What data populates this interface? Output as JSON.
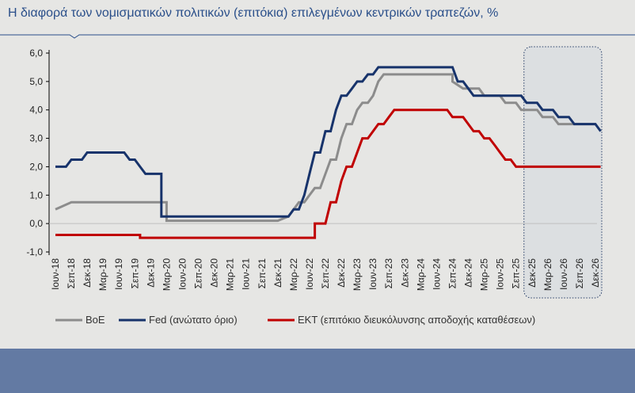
{
  "title": "Η διαφορά των νομισματικών πολιτικών (επιτόκια) επιλεγμένων κεντρικών τραπεζών, %",
  "colors": {
    "title": "#2a4f8a",
    "boe": "#8c8c8c",
    "fed": "#17336b",
    "ecb": "#c00000",
    "footer": "#637aa3"
  },
  "chart_data": {
    "type": "line",
    "ylim": [
      -1.0,
      6.0
    ],
    "yticks": [
      "6,0",
      "5,0",
      "4,0",
      "3,0",
      "2,0",
      "1,0",
      "0,0",
      "-1,0"
    ],
    "ytick_values": [
      6,
      5,
      4,
      3,
      2,
      1,
      0,
      -1
    ],
    "x_tick_labels": [
      "Ιουν-18",
      "Σεπ-18",
      "Δεκ-18",
      "Μαρ-19",
      "Ιουν-19",
      "Σεπ-19",
      "Δεκ-19",
      "Μαρ-20",
      "Ιουν-20",
      "Σεπ-20",
      "Δεκ-20",
      "Μαρ-21",
      "Ιουν-21",
      "Σεπ-21",
      "Δεκ-21",
      "Μαρ-22",
      "Ιουν-22",
      "Σεπ-22",
      "Δεκ-22",
      "Μαρ-23",
      "Ιουν-23",
      "Σεπ-23",
      "Δεκ-23",
      "Μαρ-24",
      "Ιουν-24",
      "Σεπ-24",
      "Δεκ-24",
      "Μαρ-25",
      "Ιουν-25",
      "Σεπ-25",
      "Δεκ-25",
      "Μαρ-26",
      "Ιουν-26",
      "Σεπ-26",
      "Δεκ-26"
    ],
    "forecast_from": "Δεκ-25",
    "grid": false,
    "legend_position": "bottom",
    "series": [
      {
        "name": "BoE",
        "color": "#8c8c8c",
        "points": [
          [
            0,
            0.5
          ],
          [
            1,
            0.75
          ],
          [
            7,
            0.75
          ],
          [
            7,
            0.1
          ],
          [
            14,
            0.1
          ],
          [
            14.67,
            0.25
          ],
          [
            15,
            0.5
          ],
          [
            15.33,
            0.75
          ],
          [
            15.67,
            0.75
          ],
          [
            16,
            1.0
          ],
          [
            16.33,
            1.25
          ],
          [
            16.67,
            1.25
          ],
          [
            17,
            1.75
          ],
          [
            17.33,
            2.25
          ],
          [
            17.67,
            2.25
          ],
          [
            18,
            3.0
          ],
          [
            18.33,
            3.5
          ],
          [
            18.67,
            3.5
          ],
          [
            19,
            4.0
          ],
          [
            19.33,
            4.25
          ],
          [
            19.67,
            4.25
          ],
          [
            20,
            4.5
          ],
          [
            20.33,
            5.0
          ],
          [
            20.67,
            5.25
          ],
          [
            25,
            5.25
          ],
          [
            25,
            5.0
          ],
          [
            25.67,
            4.75
          ],
          [
            26.67,
            4.75
          ],
          [
            27,
            4.5
          ],
          [
            28,
            4.5
          ],
          [
            28.33,
            4.25
          ],
          [
            29,
            4.25
          ],
          [
            29.33,
            4.0
          ],
          [
            30.33,
            4.0
          ],
          [
            30.67,
            3.75
          ],
          [
            31.33,
            3.75
          ],
          [
            31.67,
            3.5
          ],
          [
            33,
            3.5
          ],
          [
            34,
            3.5
          ]
        ]
      },
      {
        "name": "Fed (ανώτατο όριο)",
        "color": "#17336b",
        "points": [
          [
            0,
            2.0
          ],
          [
            0.67,
            2.0
          ],
          [
            1,
            2.25
          ],
          [
            1.67,
            2.25
          ],
          [
            2,
            2.5
          ],
          [
            4.33,
            2.5
          ],
          [
            4.67,
            2.25
          ],
          [
            5,
            2.25
          ],
          [
            5.33,
            2.0
          ],
          [
            5.67,
            1.75
          ],
          [
            6.67,
            1.75
          ],
          [
            6.67,
            0.25
          ],
          [
            14.67,
            0.25
          ],
          [
            15,
            0.5
          ],
          [
            15.33,
            0.5
          ],
          [
            15.67,
            1.0
          ],
          [
            16,
            1.75
          ],
          [
            16.33,
            2.5
          ],
          [
            16.67,
            2.5
          ],
          [
            17,
            3.25
          ],
          [
            17.33,
            3.25
          ],
          [
            17.67,
            4.0
          ],
          [
            18,
            4.5
          ],
          [
            18.33,
            4.5
          ],
          [
            18.67,
            4.75
          ],
          [
            19,
            5.0
          ],
          [
            19.33,
            5.0
          ],
          [
            19.67,
            5.25
          ],
          [
            20,
            5.25
          ],
          [
            20.33,
            5.5
          ],
          [
            25,
            5.5
          ],
          [
            25.33,
            5.0
          ],
          [
            25.67,
            5.0
          ],
          [
            26,
            4.75
          ],
          [
            26.33,
            4.5
          ],
          [
            29.33,
            4.5
          ],
          [
            29.67,
            4.25
          ],
          [
            30.33,
            4.25
          ],
          [
            30.67,
            4.0
          ],
          [
            31.33,
            4.0
          ],
          [
            31.67,
            3.75
          ],
          [
            32.33,
            3.75
          ],
          [
            32.67,
            3.5
          ],
          [
            34,
            3.5
          ],
          [
            34.33,
            3.25
          ]
        ]
      },
      {
        "name": "ΕΚΤ (επιτόκιο διευκόλυνσης αποδοχής καταθέσεων)",
        "color": "#c00000",
        "points": [
          [
            0,
            -0.4
          ],
          [
            5.33,
            -0.4
          ],
          [
            5.33,
            -0.5
          ],
          [
            16.33,
            -0.5
          ],
          [
            16.33,
            0.0
          ],
          [
            17,
            0.0
          ],
          [
            17.33,
            0.75
          ],
          [
            17.67,
            0.75
          ],
          [
            18,
            1.5
          ],
          [
            18.33,
            2.0
          ],
          [
            18.67,
            2.0
          ],
          [
            19,
            2.5
          ],
          [
            19.33,
            3.0
          ],
          [
            19.67,
            3.0
          ],
          [
            20,
            3.25
          ],
          [
            20.33,
            3.5
          ],
          [
            20.67,
            3.5
          ],
          [
            21,
            3.75
          ],
          [
            21.33,
            4.0
          ],
          [
            24.67,
            4.0
          ],
          [
            25,
            3.75
          ],
          [
            25.67,
            3.75
          ],
          [
            26.33,
            3.25
          ],
          [
            26.67,
            3.25
          ],
          [
            27,
            3.0
          ],
          [
            27.33,
            3.0
          ],
          [
            27.67,
            2.75
          ],
          [
            28,
            2.5
          ],
          [
            28.33,
            2.25
          ],
          [
            28.67,
            2.25
          ],
          [
            29,
            2.0
          ],
          [
            34.33,
            2.0
          ]
        ]
      }
    ]
  }
}
